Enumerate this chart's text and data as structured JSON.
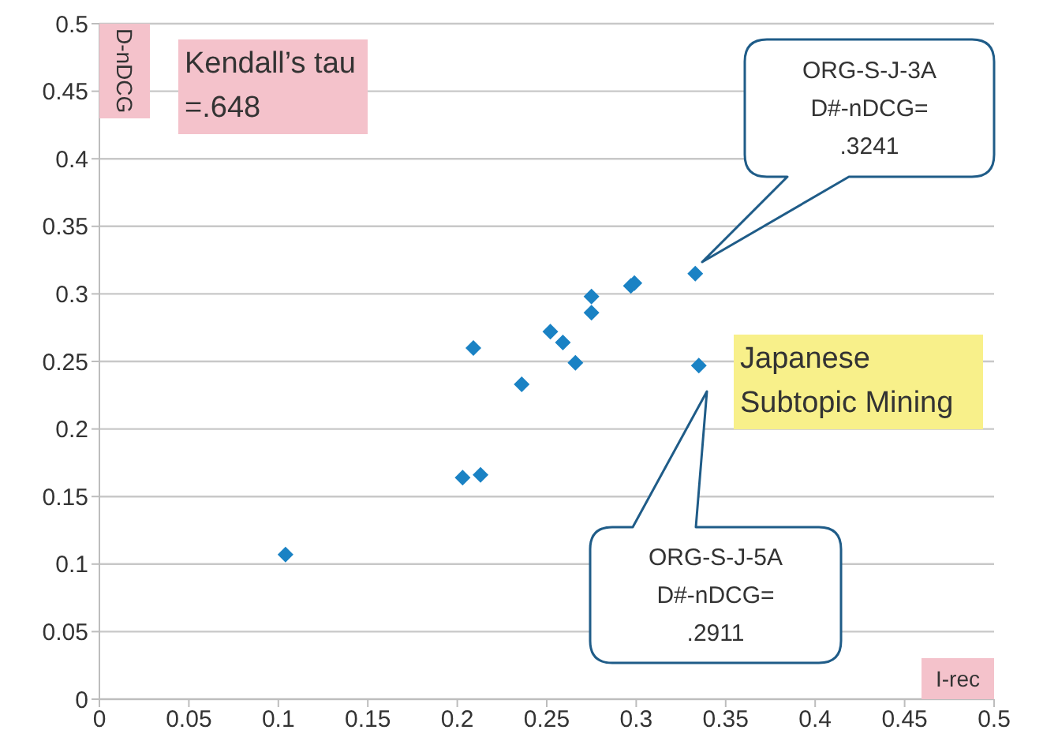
{
  "chart_data": {
    "type": "scatter",
    "xlabel": "I-rec",
    "ylabel": "D-nDCG",
    "x": [
      0.104,
      0.203,
      0.213,
      0.209,
      0.236,
      0.252,
      0.259,
      0.266,
      0.275,
      0.275,
      0.297,
      0.299,
      0.333,
      0.335
    ],
    "series": [
      {
        "color": "#1a82c4",
        "values": [
          0.107,
          0.164,
          0.166,
          0.26,
          0.233,
          0.272,
          0.264,
          0.249,
          0.298,
          0.286,
          0.306,
          0.308,
          0.315,
          0.247
        ]
      }
    ],
    "xlim": [
      0,
      0.5
    ],
    "xticks": [
      0,
      0.05,
      0.1,
      0.15,
      0.2,
      0.25,
      0.3,
      0.35,
      0.4,
      0.45,
      0.5
    ],
    "ylim": [
      0,
      0.5
    ],
    "yticks": [
      0,
      0.05,
      0.1,
      0.15,
      0.2,
      0.25,
      0.3,
      0.35,
      0.4,
      0.45,
      0.5
    ],
    "grid": "y",
    "marker": "diamond",
    "annotations": [
      "Kendall’s tau\n=.648",
      "Japanese\nSubtopic Mining",
      "ORG-S-J-3A\nD#-nDCG=\n.3241",
      "ORG-S-J-5A\nD#-nDCG=\n.2911"
    ]
  }
}
